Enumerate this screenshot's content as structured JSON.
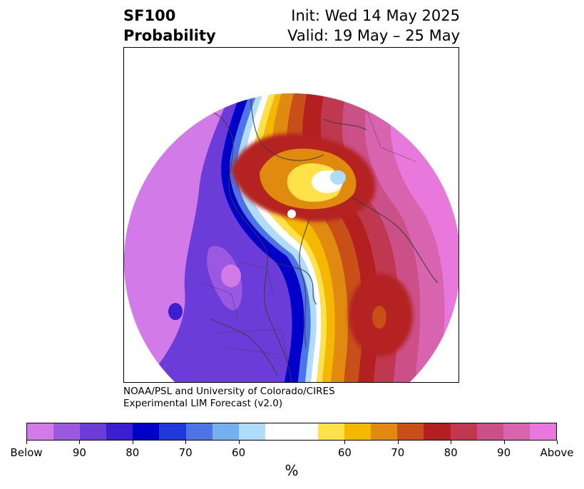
{
  "title": {
    "left_line1": "SF100",
    "left_line2": "Probability",
    "right_line1": "Init: Wed 14 May 2025",
    "right_line2": "Valid: 19 May – 25 May"
  },
  "credit": {
    "line1": "NOAA/PSL and University of Colorado/CIRES",
    "line2": "Experimental LIM Forecast (v2.0)"
  },
  "colorbar": {
    "colors": [
      "#d17ae8",
      "#9b58e0",
      "#6b3cd8",
      "#3a1ed0",
      "#0000c8",
      "#2038d8",
      "#4c74e6",
      "#74b0f0",
      "#aedcfa",
      "#ffffff",
      "#ffffff",
      "#ffe24a",
      "#f5b800",
      "#e08a10",
      "#c85018",
      "#b42020",
      "#c03850",
      "#cc5088",
      "#d864b0",
      "#e878dc"
    ],
    "tick_labels": [
      "Below",
      "90",
      "80",
      "70",
      "60",
      "60",
      "70",
      "80",
      "90",
      "Above"
    ],
    "unit": "%"
  },
  "map": {
    "projection": "north-polar-stereographic",
    "variable": "SF100 probability"
  }
}
